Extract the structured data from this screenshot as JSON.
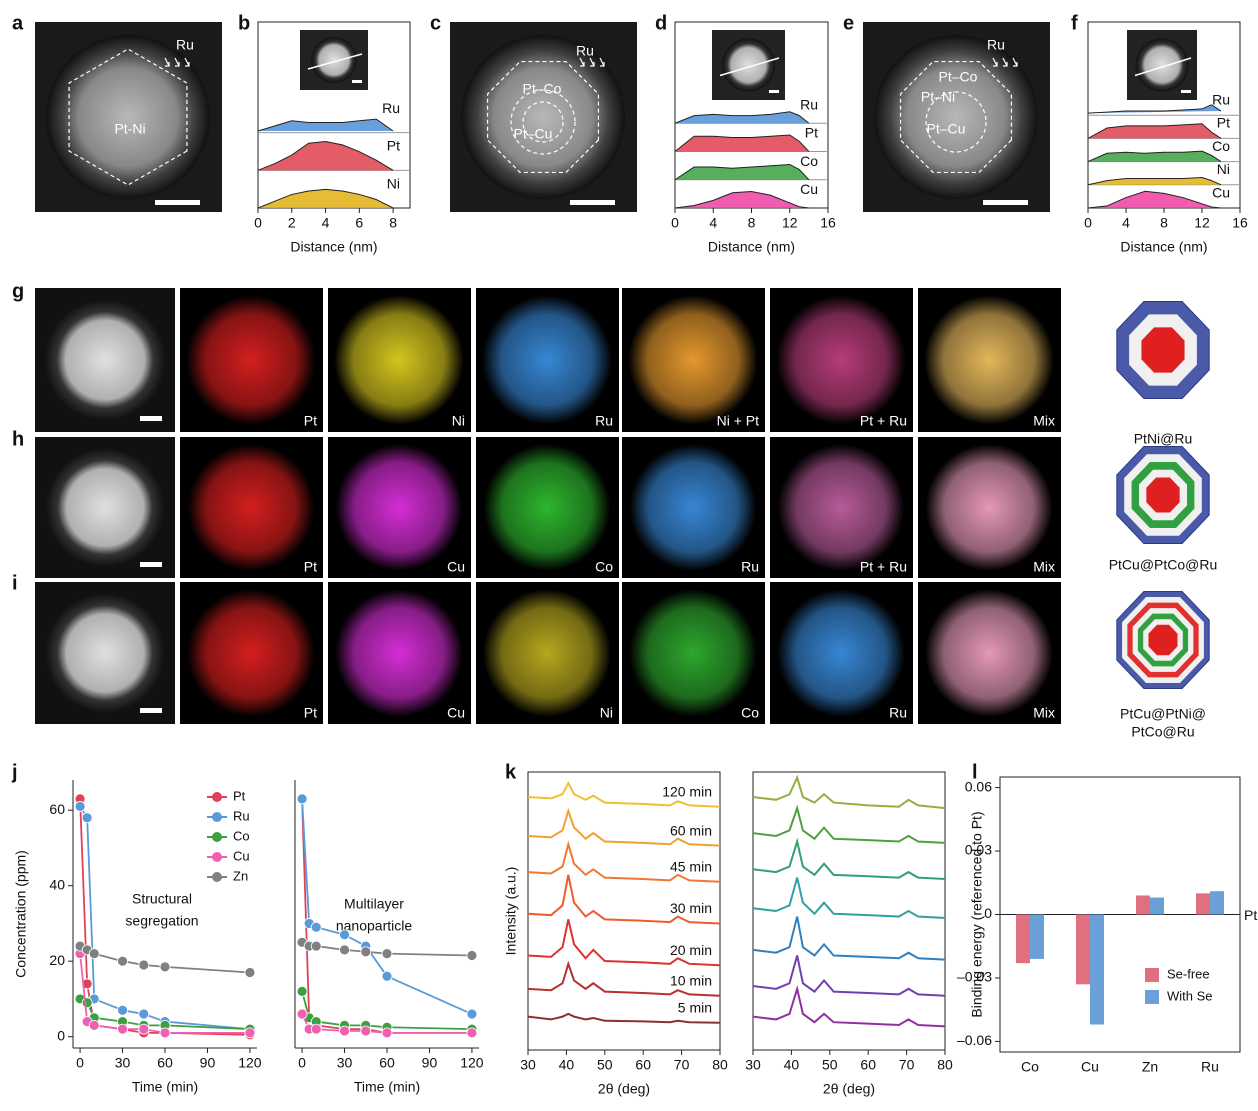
{
  "panel_letters": [
    "a",
    "b",
    "c",
    "d",
    "e",
    "f",
    "g",
    "h",
    "i",
    "j",
    "k",
    "l"
  ],
  "micrographs": [
    {
      "labels": [
        "Ru",
        "Pt-Ni"
      ]
    },
    {
      "labels": [
        "Ru",
        "Pt–Co",
        "Pt–Cu"
      ]
    },
    {
      "labels": [
        "Ru",
        "Pt–Co",
        "Pt–Ni",
        "Pt–Cu"
      ]
    }
  ],
  "map_rows": [
    {
      "maps": [
        "Pt",
        "Ni",
        "Ru",
        "Ni + Pt",
        "Pt + Ru",
        "Mix"
      ],
      "colors": [
        "#e02020",
        "#e0d020",
        "#3a8ee0",
        "#f0a030",
        "#c04080",
        "#f0c060"
      ],
      "model": [
        "PtNi@Ru"
      ]
    },
    {
      "maps": [
        "Pt",
        "Cu",
        "Co",
        "Ru",
        "Pt + Ru",
        "Mix"
      ],
      "colors": [
        "#e02020",
        "#e030e0",
        "#30c030",
        "#3a8ee0",
        "#c060a0",
        "#f0a0c0"
      ],
      "model": [
        "PtCu@PtCo@Ru"
      ]
    },
    {
      "maps": [
        "Pt",
        "Cu",
        "Ni",
        "Co",
        "Ru",
        "Mix"
      ],
      "colors": [
        "#e02020",
        "#e030e0",
        "#c0b020",
        "#30b030",
        "#3a8ee0",
        "#f0a0c0"
      ],
      "model": [
        "PtCu@PtNi@",
        "PtCo@Ru"
      ]
    }
  ],
  "chart_data": [
    {
      "type": "profile",
      "xlabel": "Distance (nm)",
      "x": [
        0,
        1,
        2,
        3,
        4,
        5,
        6,
        7,
        8
      ],
      "xlim": [
        0,
        9
      ],
      "xticks": [
        0,
        2,
        4,
        6,
        8
      ],
      "series": [
        {
          "name": "Ru",
          "color": "#4f8fd6",
          "values": [
            0.05,
            0.2,
            0.35,
            0.3,
            0.3,
            0.3,
            0.35,
            0.4,
            0.05
          ]
        },
        {
          "name": "Pt",
          "color": "#e0404f",
          "values": [
            0,
            0.2,
            0.45,
            0.8,
            0.85,
            0.75,
            0.55,
            0.3,
            0
          ]
        },
        {
          "name": "Ni",
          "color": "#e0b010",
          "values": [
            0,
            0.2,
            0.4,
            0.5,
            0.55,
            0.5,
            0.4,
            0.25,
            0
          ]
        }
      ]
    },
    {
      "type": "profile",
      "xlabel": "Distance (nm)",
      "x": [
        0,
        2,
        4,
        6,
        8,
        10,
        12,
        13,
        14
      ],
      "xlim": [
        0,
        16
      ],
      "xticks": [
        0,
        4,
        8,
        12,
        16
      ],
      "series": [
        {
          "name": "Ru",
          "color": "#4f8fd6",
          "values": [
            0,
            0.3,
            0.35,
            0.3,
            0.3,
            0.35,
            0.45,
            0.3,
            0
          ]
        },
        {
          "name": "Pt",
          "color": "#e0404f",
          "values": [
            0,
            0.6,
            0.6,
            0.55,
            0.55,
            0.6,
            0.65,
            0.4,
            0
          ]
        },
        {
          "name": "Co",
          "color": "#3aa040",
          "values": [
            0,
            0.5,
            0.5,
            0.45,
            0.5,
            0.55,
            0.6,
            0.4,
            0
          ]
        },
        {
          "name": "Cu",
          "color": "#ee3fa0",
          "values": [
            0,
            0.1,
            0.3,
            0.6,
            0.65,
            0.5,
            0.2,
            0.05,
            0
          ]
        }
      ]
    },
    {
      "type": "profile",
      "xlabel": "Distance (nm)",
      "x": [
        0,
        2,
        4,
        6,
        8,
        10,
        12,
        13,
        14
      ],
      "xlim": [
        0,
        16
      ],
      "xticks": [
        0,
        4,
        8,
        12,
        16
      ],
      "series": [
        {
          "name": "Ru",
          "color": "#4f8fd6",
          "values": [
            0.1,
            0.15,
            0.2,
            0.2,
            0.2,
            0.25,
            0.3,
            0.5,
            0.2
          ]
        },
        {
          "name": "Pt",
          "color": "#e0404f",
          "values": [
            0,
            0.5,
            0.6,
            0.6,
            0.6,
            0.65,
            0.7,
            0.3,
            0
          ]
        },
        {
          "name": "Co",
          "color": "#3aa040",
          "values": [
            0,
            0.4,
            0.45,
            0.4,
            0.45,
            0.45,
            0.5,
            0.3,
            0
          ]
        },
        {
          "name": "Ni",
          "color": "#e0b010",
          "values": [
            0,
            0.2,
            0.3,
            0.3,
            0.3,
            0.3,
            0.35,
            0.2,
            0
          ]
        },
        {
          "name": "Cu",
          "color": "#ee3fa0",
          "values": [
            0,
            0.1,
            0.5,
            0.8,
            0.7,
            0.5,
            0.2,
            0.05,
            0
          ]
        }
      ]
    },
    {
      "type": "line",
      "markers": true,
      "legend": "upper right",
      "ylabel": "Concentration (ppm)",
      "xlabel": "Time (min)",
      "annotation": [
        "Structural",
        "segregation"
      ],
      "x": [
        0,
        5,
        10,
        30,
        45,
        60,
        120
      ],
      "xlim": [
        -5,
        125
      ],
      "ylim": [
        -3,
        68
      ],
      "xticks": [
        0,
        30,
        60,
        90,
        120
      ],
      "yticks": [
        0,
        20,
        40,
        60
      ],
      "series": [
        {
          "name": "Pt",
          "color": "#e0405a",
          "values": [
            63,
            14,
            3,
            2,
            1,
            1,
            0.5
          ]
        },
        {
          "name": "Ru",
          "color": "#5a9ad8",
          "values": [
            61,
            58,
            10,
            7,
            6,
            4,
            2
          ]
        },
        {
          "name": "Co",
          "color": "#3aa040",
          "values": [
            10,
            9,
            5,
            4,
            3,
            3,
            2
          ]
        },
        {
          "name": "Cu",
          "color": "#f060b0",
          "values": [
            22,
            4,
            3,
            2,
            2,
            1,
            1
          ]
        },
        {
          "name": "Zn",
          "color": "#808080",
          "values": [
            24,
            23,
            22,
            20,
            19,
            18.5,
            17
          ]
        }
      ]
    },
    {
      "type": "line",
      "markers": true,
      "xlabel": "Time (min)",
      "annotation": [
        "Multilayer",
        "nanoparticle"
      ],
      "x": [
        0,
        5,
        10,
        30,
        45,
        60,
        120
      ],
      "xlim": [
        -5,
        125
      ],
      "ylim": [
        -3,
        68
      ],
      "xticks": [
        0,
        30,
        60,
        90,
        120
      ],
      "series": [
        {
          "color": "#e0405a",
          "values": [
            63,
            5,
            3,
            2,
            2,
            1,
            1
          ]
        },
        {
          "color": "#5a9ad8",
          "values": [
            63,
            30,
            29,
            27,
            24,
            16,
            6
          ]
        },
        {
          "color": "#3aa040",
          "values": [
            12,
            5,
            4,
            3,
            3,
            2.5,
            2
          ]
        },
        {
          "color": "#f060b0",
          "values": [
            6,
            2,
            2,
            1.5,
            1.5,
            1,
            1
          ]
        },
        {
          "color": "#808080",
          "values": [
            25,
            24,
            24,
            23,
            22.5,
            22,
            21.5
          ]
        }
      ]
    },
    {
      "type": "line",
      "ylabel": "Intensity (a.u.)",
      "xlabel": "2θ (deg)",
      "x": [
        30,
        36,
        39,
        40.5,
        42,
        45,
        47,
        50,
        60,
        67,
        69,
        72,
        80
      ],
      "xlim": [
        30,
        80
      ],
      "ylim": [
        0,
        100
      ],
      "xticks": [
        30,
        40,
        50,
        60,
        70,
        80
      ],
      "series": [
        {
          "name": "120 min",
          "color": "#f0c030",
          "values": [
            91,
            90.5,
            92,
            96,
            92,
            90,
            91.5,
            89,
            88.5,
            88,
            89.5,
            88,
            87.5
          ]
        },
        {
          "name": "60 min",
          "color": "#f0a030",
          "values": [
            77,
            76.5,
            79,
            86,
            80,
            76,
            78,
            75,
            74.5,
            74,
            76,
            74,
            73.5
          ]
        },
        {
          "name": "45 min",
          "color": "#f07830",
          "values": [
            64,
            63.5,
            66,
            74,
            67,
            63,
            65,
            62,
            61.5,
            61,
            63,
            61,
            60.5
          ]
        },
        {
          "name": "30 min",
          "color": "#f05a30",
          "values": [
            49,
            48.5,
            52,
            63,
            53,
            48,
            50,
            47,
            46.5,
            46,
            48,
            46,
            45.5
          ]
        },
        {
          "name": "20 min",
          "color": "#e03030",
          "values": [
            34,
            33.5,
            37,
            47,
            38,
            33,
            36,
            32,
            31.5,
            31,
            33,
            31,
            30.5
          ]
        },
        {
          "name": "10 min",
          "color": "#b83030",
          "values": [
            22,
            21.5,
            24,
            31,
            25,
            22,
            24,
            21,
            20.5,
            20,
            21.5,
            20,
            19.5
          ]
        },
        {
          "name": "5 min",
          "color": "#8b3030",
          "values": [
            12,
            11,
            12,
            13,
            12,
            11,
            11.5,
            10.5,
            10.3,
            10,
            10.5,
            10,
            9.8
          ]
        }
      ]
    },
    {
      "type": "line",
      "xlabel": "2θ (deg)",
      "x": [
        30,
        36,
        39.5,
        41.5,
        43,
        46,
        48.5,
        51,
        60,
        68,
        70.5,
        73,
        80
      ],
      "xlim": [
        30,
        80
      ],
      "ylim": [
        0,
        100
      ],
      "xticks": [
        30,
        40,
        50,
        60,
        70,
        80
      ],
      "series": [
        {
          "color": "#90b040",
          "values": [
            91,
            90,
            92,
            98,
            91,
            89,
            92,
            89,
            88,
            87.5,
            90,
            88,
            87
          ]
        },
        {
          "color": "#50a040",
          "values": [
            78,
            77,
            79,
            87,
            79,
            76,
            80,
            76,
            75.5,
            75,
            77,
            75,
            74.5
          ]
        },
        {
          "color": "#30a070",
          "values": [
            65,
            64,
            66,
            75,
            66,
            63,
            67,
            63,
            62.5,
            62,
            64,
            62,
            61.5
          ]
        },
        {
          "color": "#30a0a0",
          "values": [
            51,
            50,
            52,
            62,
            53,
            49,
            53,
            49,
            48.5,
            48,
            50,
            48,
            47.5
          ]
        },
        {
          "color": "#3080c0",
          "values": [
            36,
            35,
            37,
            48,
            37,
            34,
            38,
            34,
            33.5,
            33,
            35,
            33,
            32.5
          ]
        },
        {
          "color": "#7040b0",
          "values": [
            23,
            22,
            24,
            34,
            24,
            21,
            25,
            21,
            20.5,
            20,
            22,
            20,
            19.5
          ]
        },
        {
          "color": "#9030a0",
          "values": [
            12,
            11,
            13,
            22,
            13,
            10,
            13,
            10,
            9.5,
            9,
            11,
            9,
            8.5
          ]
        }
      ]
    },
    {
      "type": "bar",
      "ylabel": "Binding energy (referenced to Pt)",
      "reference_label": "Pt",
      "legend": "lower right",
      "categories": [
        "Co",
        "Cu",
        "Zn",
        "Ru"
      ],
      "ylim": [
        -0.065,
        0.065
      ],
      "yticks": [
        0.06,
        0.03,
        0,
        {
          "value": -0.03,
          "label": "–0.03"
        },
        {
          "value": -0.06,
          "label": "–0.06"
        }
      ],
      "series": [
        {
          "name": "Se-free",
          "color": "#e07080",
          "values": [
            -0.023,
            -0.033,
            0.009,
            0.01
          ]
        },
        {
          "name": "With Se",
          "color": "#6a9fd8",
          "values": [
            -0.021,
            -0.052,
            0.008,
            0.011
          ]
        }
      ]
    }
  ]
}
